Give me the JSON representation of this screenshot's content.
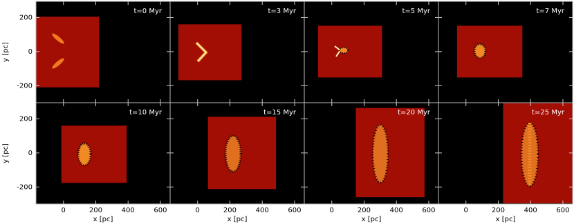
{
  "chart_data": {
    "type": "image-grid",
    "xlabel": "x [pc]",
    "ylabel": "y [pc]",
    "xlim": [
      -170,
      660
    ],
    "ylim": [
      -300,
      295
    ],
    "xticks": [
      0,
      200,
      400,
      600
    ],
    "yticks": [
      -200,
      0,
      200
    ],
    "box_color": "#a30e04",
    "panels": [
      {
        "label": "t=0 Myr",
        "box": {
          "x": [
            -170,
            220
          ],
          "y": [
            -210,
            205
          ]
        }
      },
      {
        "label": "t=3 Myr",
        "box": {
          "x": [
            -119,
            272
          ],
          "y": [
            -168,
            160
          ]
        }
      },
      {
        "label": "t=5 Myr",
        "box": {
          "x": [
            -85,
            311
          ],
          "y": [
            -152,
            152
          ]
        }
      },
      {
        "label": "t=7 Myr",
        "box": {
          "x": [
            -55,
            349
          ],
          "y": [
            -152,
            152
          ]
        }
      },
      {
        "label": "t=10 Myr",
        "box": {
          "x": [
            -13,
            391
          ],
          "y": [
            -176,
            160
          ]
        }
      },
      {
        "label": "t=15 Myr",
        "box": {
          "x": [
            64,
            485
          ],
          "y": [
            -212,
            212
          ]
        }
      },
      {
        "label": "t=20 Myr",
        "box": {
          "x": [
            149,
            574
          ],
          "y": [
            -260,
            264
          ]
        }
      },
      {
        "label": "t=25 Myr",
        "box": {
          "x": [
            230,
            660
          ],
          "y": [
            -296,
            292
          ]
        }
      }
    ]
  }
}
